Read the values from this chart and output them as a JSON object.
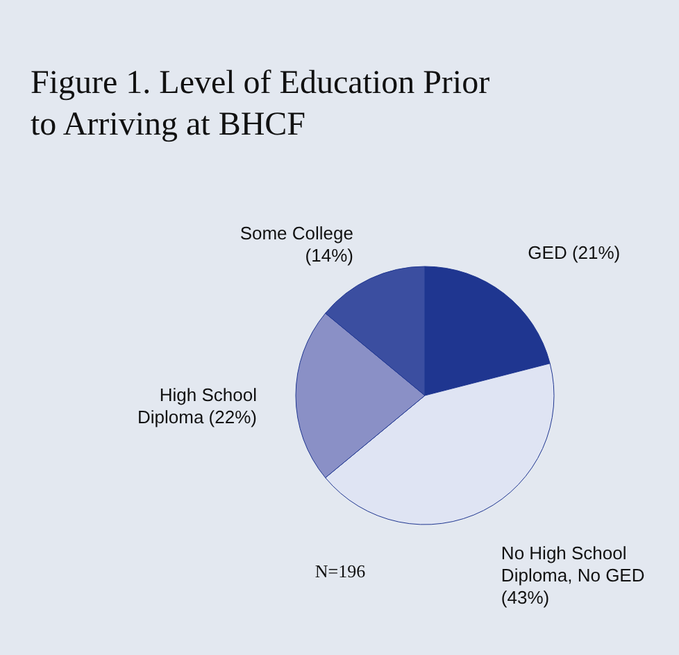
{
  "chart_data": {
    "type": "pie",
    "title": "Figure 1. Level of Education Prior to Arriving at BHCF",
    "categories": [
      "GED (21%)",
      "No High School Diploma, No GED (43%)",
      "High School Diploma (22%)",
      "Some College (14%)"
    ],
    "values": [
      21,
      43,
      22,
      14
    ],
    "colors": [
      "#1f3690",
      "#dfe4f3",
      "#8a90c6",
      "#3b4ea0"
    ],
    "annotations": [
      "N=196"
    ]
  }
}
